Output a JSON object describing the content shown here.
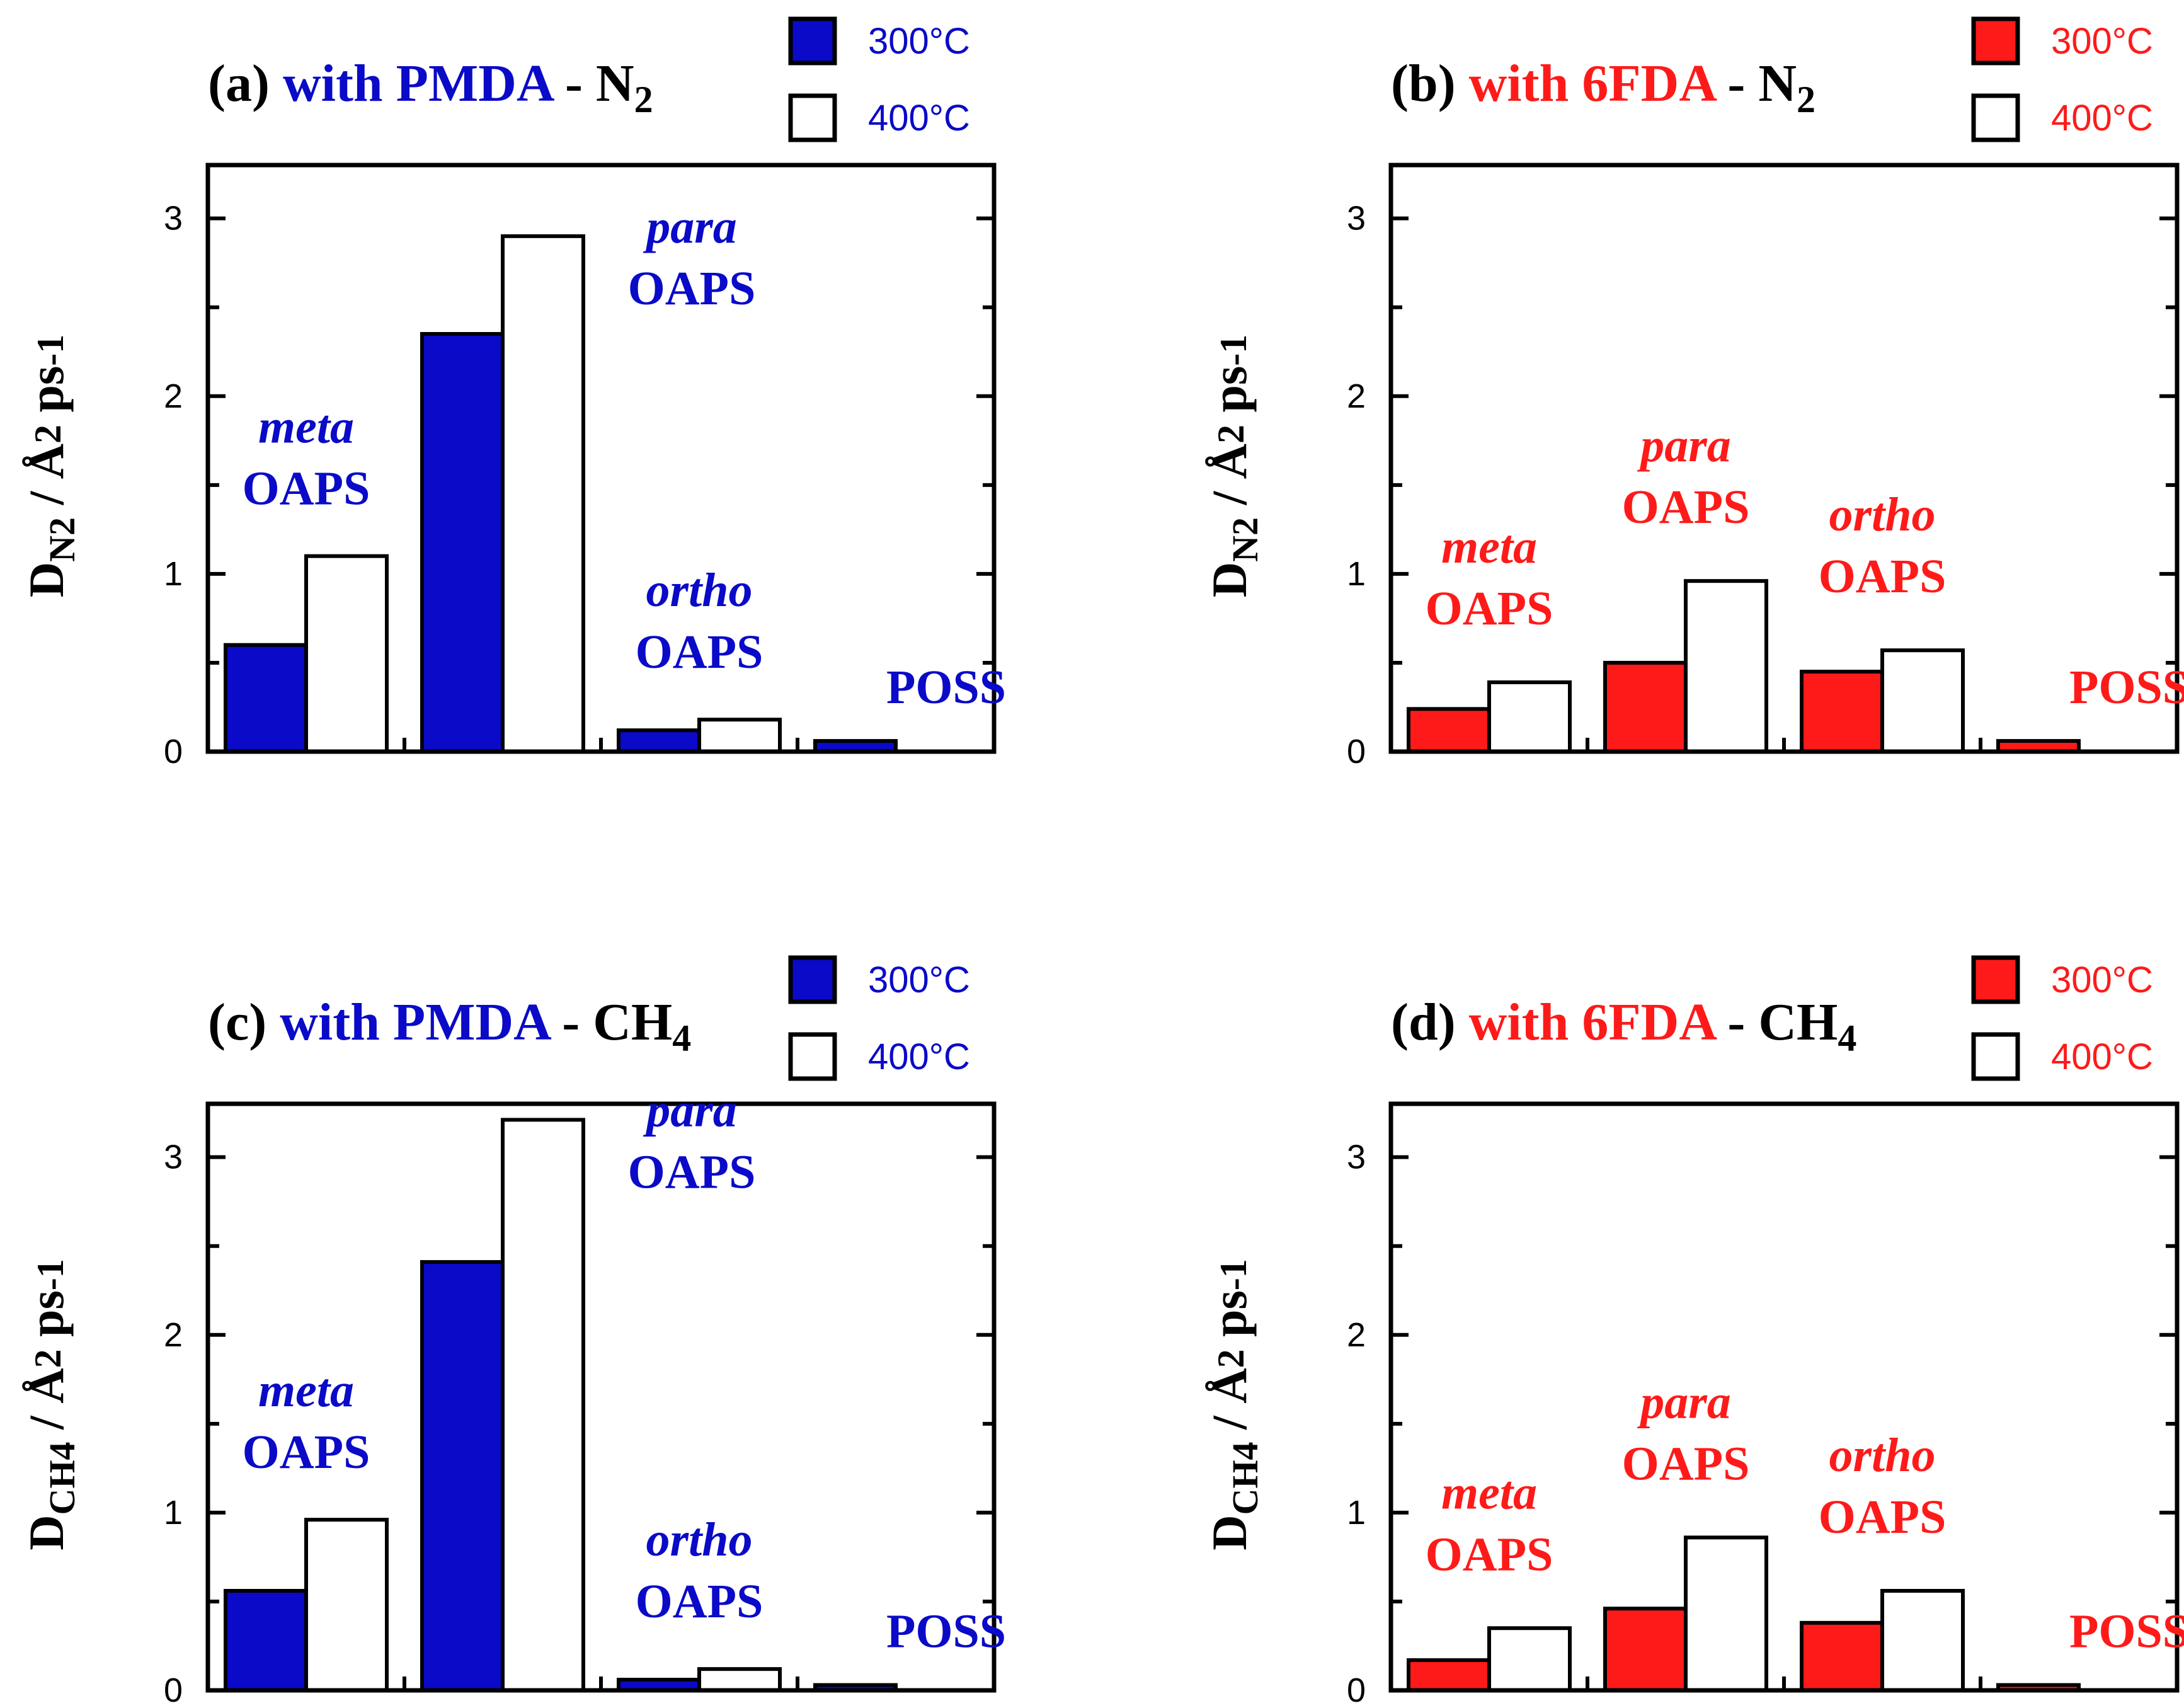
{
  "colors": {
    "pmda": "#0a0ac8",
    "sixfda": "#ff1a1a",
    "open": "#ffffff",
    "axis": "#000000",
    "text": "#000000"
  },
  "chart_data": [
    {
      "id": "a",
      "type": "bar",
      "accent": "pmda",
      "title": {
        "prefix": "(a) ",
        "dianhydride": "with PMDA",
        "sep": " - ",
        "gas": "N",
        "gas_sub": "2"
      },
      "ylabel": {
        "main": "D",
        "sub": "N2",
        "rest": " / Å",
        "sup": "2",
        "unit": " ps",
        "unit_sup": "-1"
      },
      "ylim": [
        0,
        3.3
      ],
      "yticks": [
        0,
        1,
        2,
        3
      ],
      "legend": [
        "300°C",
        "400°C"
      ],
      "categories": [
        "meta OAPS",
        "para OAPS",
        "ortho OAPS",
        "POSS"
      ],
      "group_labels": [
        {
          "italic": "meta",
          "bold": "OAPS"
        },
        {
          "italic": "para",
          "bold": "OAPS"
        },
        {
          "italic": "ortho",
          "bold": "OAPS"
        },
        {
          "italic": "",
          "bold": "POSS"
        }
      ],
      "series": [
        {
          "name": "300°C",
          "fill": "accent",
          "values": [
            0.6,
            2.35,
            0.12,
            0.06
          ]
        },
        {
          "name": "400°C",
          "fill": "open",
          "values": [
            1.1,
            2.9,
            0.18,
            null
          ]
        }
      ]
    },
    {
      "id": "b",
      "type": "bar",
      "accent": "sixfda",
      "title": {
        "prefix": "(b) ",
        "dianhydride": "with 6FDA",
        "sep": " - ",
        "gas": "N",
        "gas_sub": "2"
      },
      "ylabel": {
        "main": "D",
        "sub": "N2",
        "rest": " / Å",
        "sup": "2",
        "unit": " ps",
        "unit_sup": "-1"
      },
      "ylim": [
        0,
        3.3
      ],
      "yticks": [
        0,
        1,
        2,
        3
      ],
      "legend": [
        "300°C",
        "400°C"
      ],
      "categories": [
        "meta OAPS",
        "para OAPS",
        "ortho OAPS",
        "POSS"
      ],
      "group_labels": [
        {
          "italic": "meta",
          "bold": "OAPS"
        },
        {
          "italic": "para",
          "bold": "OAPS"
        },
        {
          "italic": "ortho",
          "bold": "OAPS"
        },
        {
          "italic": "",
          "bold": "POSS"
        }
      ],
      "series": [
        {
          "name": "300°C",
          "fill": "accent",
          "values": [
            0.24,
            0.5,
            0.45,
            0.06
          ]
        },
        {
          "name": "400°C",
          "fill": "open",
          "values": [
            0.39,
            0.96,
            0.57,
            null
          ]
        }
      ]
    },
    {
      "id": "c",
      "type": "bar",
      "accent": "pmda",
      "title": {
        "prefix": "(c) ",
        "dianhydride": "with PMDA",
        "sep": " - ",
        "gas": "CH",
        "gas_sub": "4"
      },
      "ylabel": {
        "main": "D",
        "sub": "CH4",
        "rest": " / Å",
        "sup": "2",
        "unit": " ps",
        "unit_sup": "-1"
      },
      "ylim": [
        0,
        3.3
      ],
      "yticks": [
        0,
        1,
        2,
        3
      ],
      "legend": [
        "300°C",
        "400°C"
      ],
      "categories": [
        "meta OAPS",
        "para OAPS",
        "ortho OAPS",
        "POSS"
      ],
      "group_labels": [
        {
          "italic": "meta",
          "bold": "OAPS"
        },
        {
          "italic": "para",
          "bold": "OAPS"
        },
        {
          "italic": "ortho",
          "bold": "OAPS"
        },
        {
          "italic": "",
          "bold": "POSS"
        }
      ],
      "series": [
        {
          "name": "300°C",
          "fill": "accent",
          "values": [
            0.56,
            2.41,
            0.06,
            0.03
          ]
        },
        {
          "name": "400°C",
          "fill": "open",
          "values": [
            0.96,
            3.21,
            0.12,
            null
          ]
        }
      ]
    },
    {
      "id": "d",
      "type": "bar",
      "accent": "sixfda",
      "title": {
        "prefix": "(d) ",
        "dianhydride": "with 6FDA",
        "sep": " - ",
        "gas": "CH",
        "gas_sub": "4"
      },
      "ylabel": {
        "main": "D",
        "sub": "CH4",
        "rest": " / Å",
        "sup": "2",
        "unit": " ps",
        "unit_sup": "-1"
      },
      "ylim": [
        0,
        3.3
      ],
      "yticks": [
        0,
        1,
        2,
        3
      ],
      "legend": [
        "300°C",
        "400°C"
      ],
      "categories": [
        "meta OAPS",
        "para OAPS",
        "ortho OAPS",
        "POSS"
      ],
      "group_labels": [
        {
          "italic": "meta",
          "bold": "OAPS"
        },
        {
          "italic": "para",
          "bold": "OAPS"
        },
        {
          "italic": "ortho",
          "bold": "OAPS"
        },
        {
          "italic": "",
          "bold": "POSS"
        }
      ],
      "series": [
        {
          "name": "300°C",
          "fill": "accent",
          "values": [
            0.17,
            0.46,
            0.38,
            0.03
          ]
        },
        {
          "name": "400°C",
          "fill": "open",
          "values": [
            0.35,
            0.86,
            0.56,
            null
          ]
        }
      ]
    }
  ]
}
